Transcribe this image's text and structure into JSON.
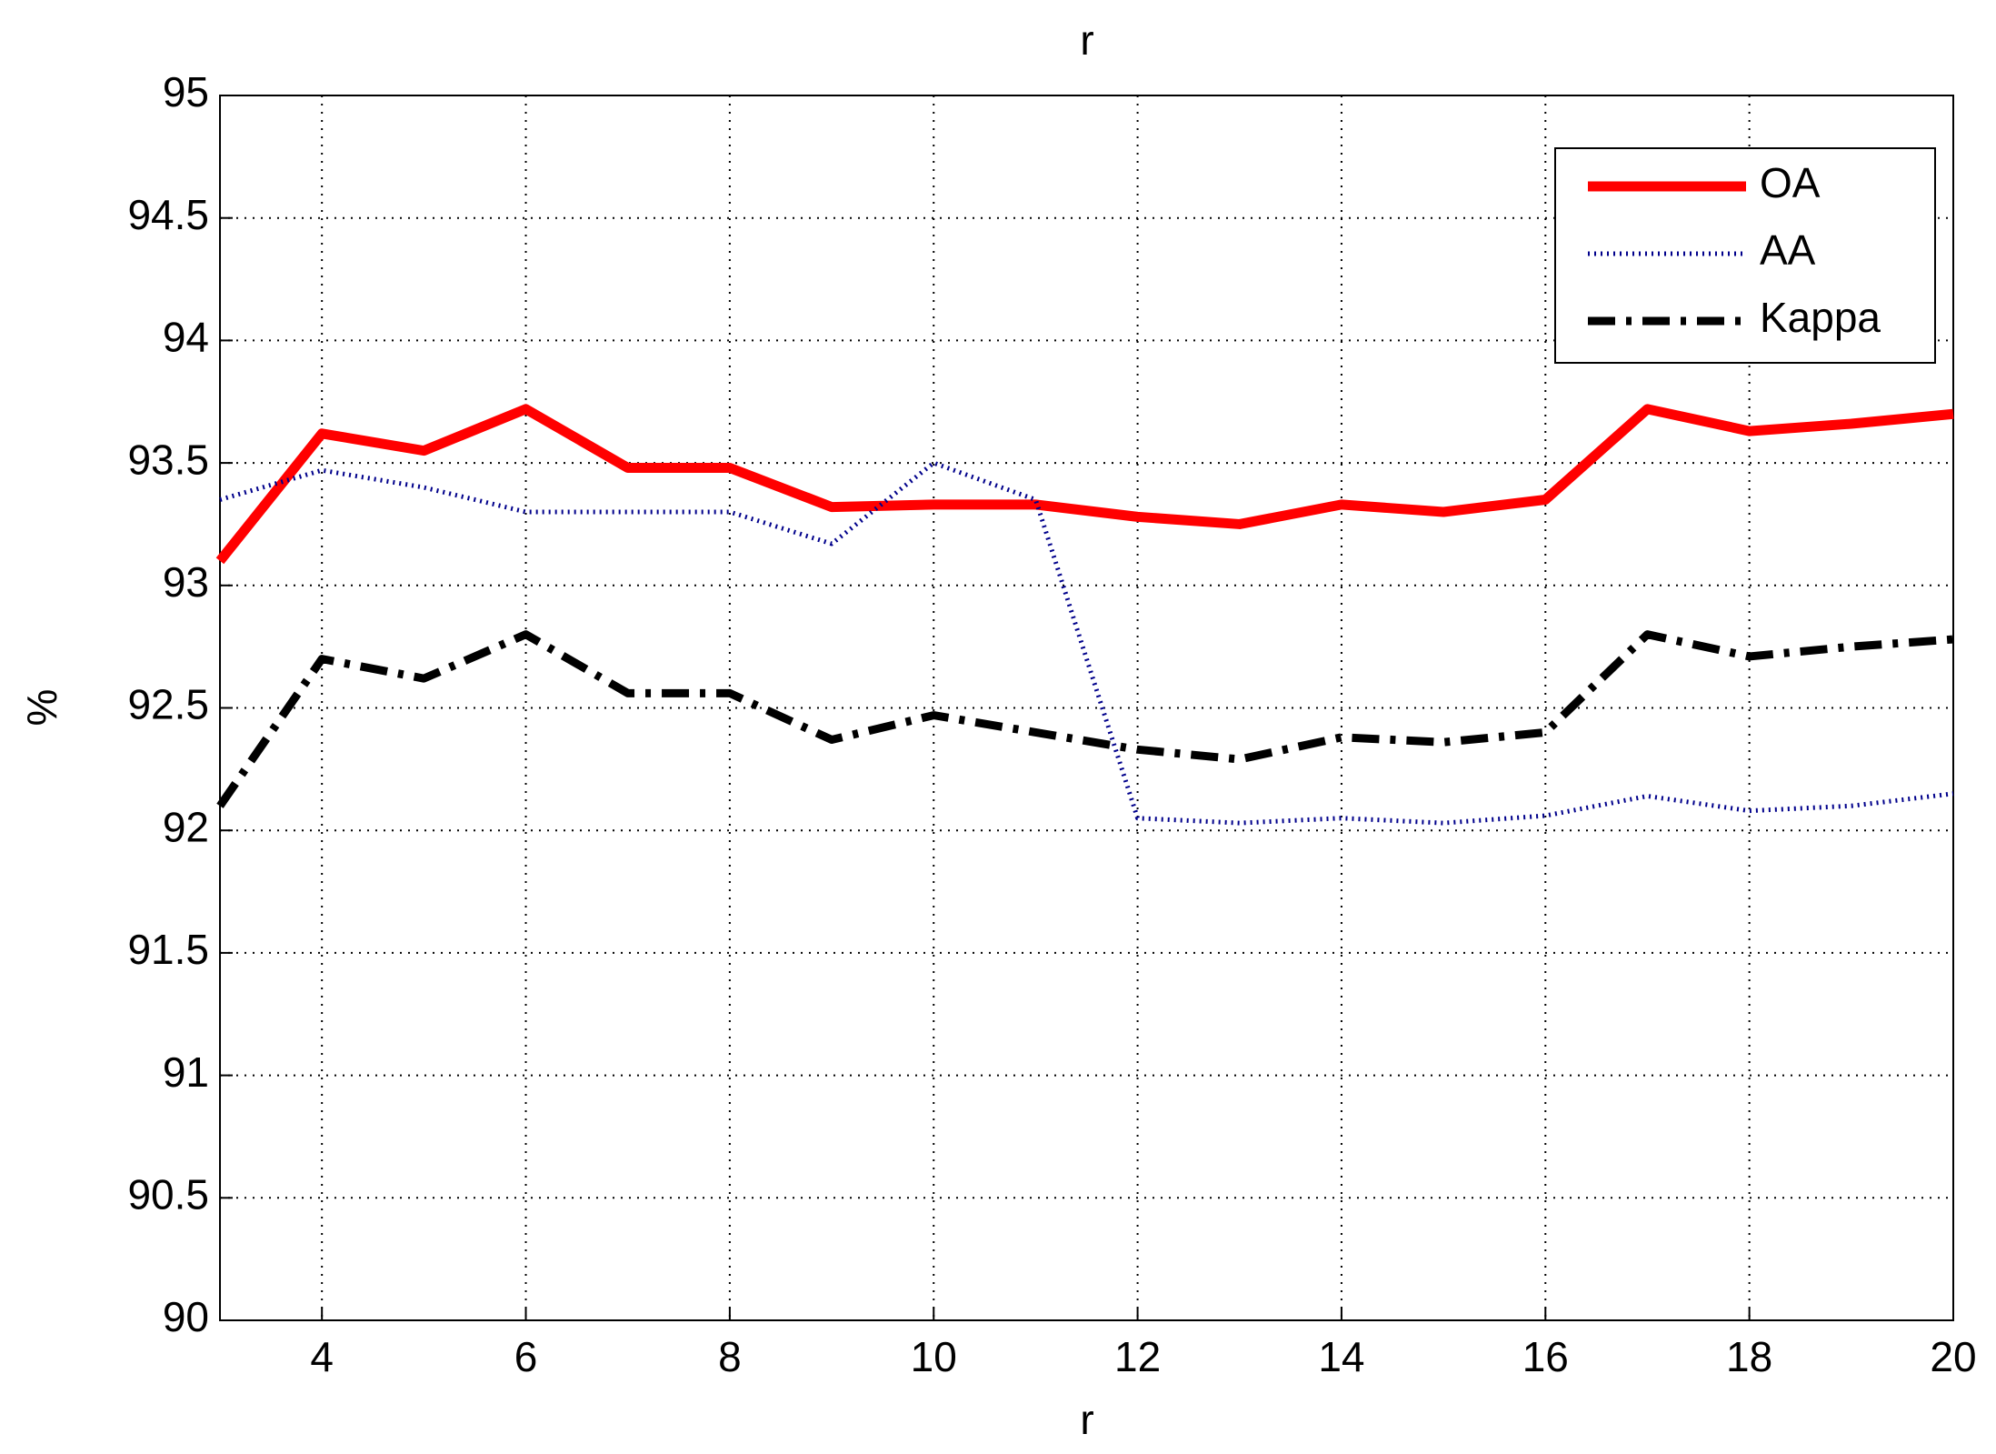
{
  "chart_data": {
    "type": "line",
    "title": "r",
    "x_label": "r",
    "y_label": "%",
    "x": [
      3,
      4,
      5,
      6,
      7,
      8,
      9,
      10,
      11,
      12,
      13,
      14,
      15,
      16,
      17,
      18,
      19,
      20
    ],
    "series": [
      {
        "name": "OA",
        "color": "#ff0000",
        "style": "solid",
        "values": [
          93.1,
          93.62,
          93.55,
          93.72,
          93.48,
          93.48,
          93.32,
          93.33,
          93.33,
          93.28,
          93.25,
          93.33,
          93.3,
          93.35,
          93.72,
          93.63,
          93.66,
          93.7
        ]
      },
      {
        "name": "AA",
        "color": "#00008b",
        "style": "dotted",
        "values": [
          93.35,
          93.47,
          93.4,
          93.3,
          93.3,
          93.3,
          93.17,
          93.5,
          93.35,
          92.05,
          92.03,
          92.05,
          92.03,
          92.06,
          92.14,
          92.08,
          92.1,
          92.15
        ]
      },
      {
        "name": "Kappa",
        "color": "#000000",
        "style": "dashdot",
        "values": [
          92.1,
          92.7,
          92.62,
          92.8,
          92.56,
          92.56,
          92.37,
          92.47,
          92.4,
          92.33,
          92.29,
          92.38,
          92.36,
          92.4,
          92.8,
          92.71,
          92.75,
          92.78
        ]
      }
    ],
    "xlim": [
      3,
      20
    ],
    "xticks": [
      4,
      6,
      8,
      10,
      12,
      14,
      16,
      18,
      20
    ],
    "ylim": [
      90,
      95
    ],
    "yticks": [
      90,
      90.5,
      91,
      91.5,
      92,
      92.5,
      93,
      93.5,
      94,
      94.5,
      95
    ],
    "grid": true,
    "legend": "northeast"
  }
}
